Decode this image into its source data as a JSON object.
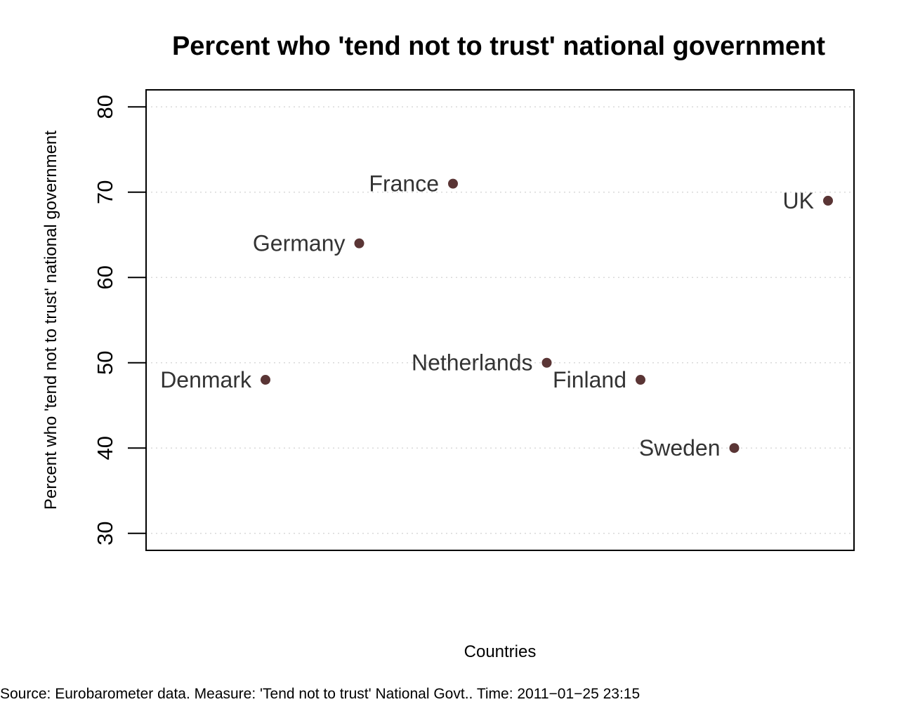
{
  "chart_data": {
    "type": "scatter",
    "title": "Percent who 'tend not to trust' national government",
    "xlabel": "Countries",
    "ylabel": "Percent who 'tend not to trust' national government",
    "ylim": [
      28,
      82
    ],
    "yticks": [
      30,
      40,
      50,
      60,
      70,
      80
    ],
    "grid": true,
    "points": [
      {
        "label": "Denmark",
        "x": 1,
        "y": 48
      },
      {
        "label": "Germany",
        "x": 2,
        "y": 64
      },
      {
        "label": "France",
        "x": 3,
        "y": 71
      },
      {
        "label": "Netherlands",
        "x": 4,
        "y": 50
      },
      {
        "label": "Finland",
        "x": 5,
        "y": 48
      },
      {
        "label": "Sweden",
        "x": 6,
        "y": 40
      },
      {
        "label": "UK",
        "x": 7,
        "y": 69
      }
    ],
    "point_color": "#5a3535",
    "label_color": "#333333",
    "grid_color": "#d9d9d9"
  },
  "source_note": "Source: Eurobarometer data. Measure: 'Tend not to trust' National Govt.. Time:   2011−01−25 23:15"
}
